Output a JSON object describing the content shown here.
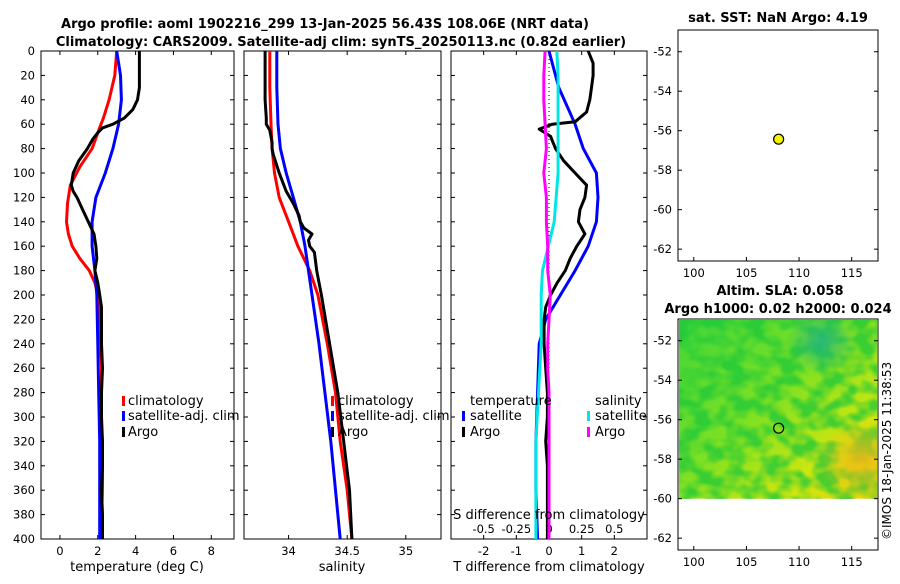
{
  "header": {
    "line1": "Argo profile: aoml 1902216_299 13-Jan-2025 56.43S 108.06E (NRT data)",
    "line2": "Climatology: CARS2009. Satellite-adj clim: synTS_20250113.nc (0.82d earlier)"
  },
  "colors": {
    "climatology": "#ff0000",
    "satellite": "#0000ff",
    "argo": "#000000",
    "cyan": "#00e5e5",
    "magenta": "#ff00ff",
    "sstdot": "#f5f500"
  },
  "chart_data": [
    {
      "type": "line",
      "id": "temperature",
      "xlabel": "temperature (deg C)",
      "xlim": [
        -1,
        9.2
      ],
      "ylim": [
        0,
        400
      ],
      "xticks": [
        "0",
        "2",
        "4",
        "6",
        "8"
      ],
      "yticks": [
        "0",
        "20",
        "40",
        "60",
        "80",
        "100",
        "120",
        "140",
        "160",
        "180",
        "200",
        "220",
        "240",
        "260",
        "280",
        "300",
        "320",
        "340",
        "360",
        "380",
        "400"
      ],
      "legend": [
        "climatology",
        "satellite-adj. clim",
        "Argo"
      ],
      "series": [
        {
          "name": "climatology",
          "depth": [
            0,
            20,
            40,
            55,
            65,
            80,
            95,
            110,
            125,
            140,
            150,
            160,
            170,
            180,
            190,
            200,
            220,
            240,
            260,
            280,
            300,
            320,
            340,
            360,
            380,
            400
          ],
          "values": [
            3.0,
            2.9,
            2.6,
            2.3,
            2.05,
            1.7,
            1.05,
            0.55,
            0.4,
            0.35,
            0.45,
            0.65,
            1.05,
            1.55,
            1.85,
            2.0,
            2.1,
            2.15,
            2.2,
            2.2,
            2.2,
            2.2,
            2.25,
            2.25,
            2.2,
            2.2
          ]
        },
        {
          "name": "satellite-adj. clim",
          "depth": [
            0,
            20,
            40,
            60,
            80,
            100,
            120,
            140,
            160,
            180,
            200,
            240,
            280,
            320,
            360,
            400
          ],
          "values": [
            3.0,
            3.2,
            3.25,
            3.1,
            2.8,
            2.4,
            1.9,
            1.7,
            1.7,
            1.85,
            1.95,
            2.0,
            2.05,
            2.1,
            2.1,
            2.1
          ]
        },
        {
          "name": "Argo",
          "depth": [
            0,
            10,
            20,
            30,
            40,
            48,
            55,
            60,
            63,
            67,
            72,
            80,
            90,
            100,
            110,
            115,
            120,
            130,
            140,
            150,
            160,
            170,
            180,
            190,
            200,
            205,
            210,
            220,
            240,
            260,
            280,
            300,
            320,
            340,
            360,
            380,
            400
          ],
          "values": [
            4.2,
            4.2,
            4.2,
            4.2,
            4.1,
            3.85,
            3.4,
            2.8,
            2.25,
            2.0,
            1.75,
            1.45,
            1.0,
            0.7,
            0.6,
            0.7,
            0.9,
            1.2,
            1.5,
            1.8,
            1.9,
            1.95,
            1.85,
            2.0,
            2.1,
            2.15,
            2.2,
            2.2,
            2.2,
            2.25,
            2.2,
            2.2,
            2.25,
            2.25,
            2.2,
            2.25,
            2.25
          ]
        }
      ]
    },
    {
      "type": "line",
      "id": "salinity",
      "xlabel": "salinity",
      "xlim": [
        33.62,
        35.3
      ],
      "ylim": [
        0,
        400
      ],
      "xticks": [
        "34",
        "34.5",
        "35"
      ],
      "legend": [
        "climatology",
        "satellite-adj. clim",
        "Argo"
      ],
      "series": [
        {
          "name": "climatology",
          "depth": [
            0,
            30,
            60,
            80,
            100,
            120,
            140,
            160,
            180,
            200,
            240,
            280,
            320,
            360,
            400
          ],
          "values": [
            33.84,
            33.84,
            33.85,
            33.86,
            33.88,
            33.92,
            34.0,
            34.08,
            34.18,
            34.25,
            34.33,
            34.4,
            34.44,
            34.5,
            34.54
          ]
        },
        {
          "name": "satellite-adj. clim",
          "depth": [
            0,
            30,
            60,
            80,
            100,
            120,
            140,
            160,
            200,
            240,
            280,
            320,
            360,
            400
          ],
          "values": [
            33.9,
            33.9,
            33.91,
            33.93,
            33.98,
            34.04,
            34.1,
            34.14,
            34.2,
            34.26,
            34.31,
            34.36,
            34.4,
            34.44
          ]
        },
        {
          "name": "Argo",
          "depth": [
            0,
            20,
            40,
            55,
            60,
            65,
            75,
            80,
            85,
            100,
            115,
            125,
            135,
            140,
            145,
            150,
            155,
            160,
            165,
            180,
            200,
            240,
            280,
            320,
            360,
            400
          ],
          "values": [
            33.8,
            33.8,
            33.8,
            33.81,
            33.81,
            33.84,
            33.86,
            33.86,
            33.87,
            33.92,
            33.98,
            34.04,
            34.09,
            34.1,
            34.13,
            34.2,
            34.17,
            34.18,
            34.22,
            34.24,
            34.28,
            34.35,
            34.42,
            34.47,
            34.52,
            34.54
          ]
        }
      ]
    },
    {
      "type": "line",
      "id": "difference",
      "xlabel": "T difference from climatology",
      "toplabel": "S difference from climatology",
      "xlim": [
        -3,
        3
      ],
      "ylim": [
        0,
        400
      ],
      "xticks": [
        "-2",
        "-1",
        "0",
        "1",
        "2"
      ],
      "sticks": [
        "-0.5",
        "-0.25",
        "0",
        "0.25",
        "0.5"
      ],
      "legend_left": {
        "heading": "temperature",
        "items": [
          "satellite",
          "Argo"
        ]
      },
      "legend_right": {
        "heading": "salinity",
        "items": [
          "satellite",
          "Argo"
        ]
      },
      "series": [
        {
          "name": "T satellite",
          "depth": [
            0,
            30,
            60,
            80,
            100,
            120,
            140,
            160,
            180,
            200,
            220,
            240,
            280,
            320,
            360,
            400
          ],
          "values": [
            0.0,
            0.3,
            0.8,
            1.05,
            1.45,
            1.5,
            1.45,
            1.2,
            0.8,
            0.35,
            -0.1,
            -0.3,
            -0.35,
            -0.4,
            -0.4,
            -0.35
          ]
        },
        {
          "name": "T Argo",
          "depth": [
            0,
            10,
            20,
            30,
            40,
            50,
            58,
            60,
            64,
            70,
            80,
            90,
            100,
            110,
            120,
            130,
            140,
            150,
            160,
            170,
            180,
            190,
            200,
            210,
            220,
            240,
            260,
            280,
            300,
            320,
            340,
            360,
            380,
            400
          ],
          "values": [
            1.2,
            1.35,
            1.35,
            1.3,
            1.25,
            1.15,
            0.8,
            0.1,
            -0.3,
            0.05,
            0.2,
            0.45,
            0.8,
            1.15,
            1.1,
            0.95,
            0.9,
            1.1,
            0.85,
            0.65,
            0.5,
            0.25,
            0.05,
            -0.1,
            -0.15,
            -0.15,
            -0.1,
            -0.05,
            -0.05,
            -0.1,
            -0.05,
            -0.05,
            -0.05,
            -0.05
          ]
        },
        {
          "name": "S satellite",
          "depth": [
            0,
            20,
            40,
            60,
            80,
            100,
            140,
            180,
            200,
            240,
            280,
            320,
            360,
            400
          ],
          "values": [
            0.06,
            0.07,
            0.07,
            0.07,
            0.07,
            0.07,
            0.04,
            -0.05,
            -0.06,
            -0.06,
            -0.08,
            -0.1,
            -0.1,
            -0.1
          ]
        },
        {
          "name": "S Argo",
          "depth": [
            0,
            20,
            40,
            60,
            80,
            100,
            120,
            140,
            160,
            180,
            200,
            220,
            240,
            260,
            280,
            300,
            340,
            380,
            400
          ],
          "values": [
            -0.03,
            -0.04,
            -0.04,
            -0.03,
            -0.02,
            -0.04,
            -0.02,
            -0.02,
            -0.01,
            -0.01,
            0.01,
            0.0,
            -0.01,
            -0.01,
            0.0,
            0.0,
            0.0,
            0.0,
            0.0
          ]
        }
      ]
    },
    {
      "type": "scatter",
      "id": "sst_map",
      "title": "sat. SST: NaN Argo: 4.19",
      "xlim": [
        98.5,
        117.5
      ],
      "ylim": [
        -62.6,
        -50.9
      ],
      "xticks": [
        "100",
        "105",
        "110",
        "115"
      ],
      "yticks": [
        "-52",
        "-54",
        "-56",
        "-58",
        "-60",
        "-62"
      ],
      "point": {
        "x": 108.06,
        "y": -56.43
      }
    },
    {
      "type": "heatmap",
      "id": "sla_map",
      "title1": "Altim. SLA: 0.058",
      "title2": "Argo h1000: 0.02 h2000: 0.024",
      "xlim": [
        98.5,
        117.5
      ],
      "ylim": [
        -62.6,
        -50.9
      ],
      "data_lat_range": [
        -60,
        -50.9
      ],
      "xticks": [
        "100",
        "105",
        "110",
        "115"
      ],
      "yticks": [
        "-52",
        "-54",
        "-56",
        "-58",
        "-60",
        "-62"
      ],
      "point": {
        "x": 108.06,
        "y": -56.43
      }
    }
  ],
  "footer": {
    "stamp": "©IMOS 18-Jan-2025 11:38:53"
  }
}
